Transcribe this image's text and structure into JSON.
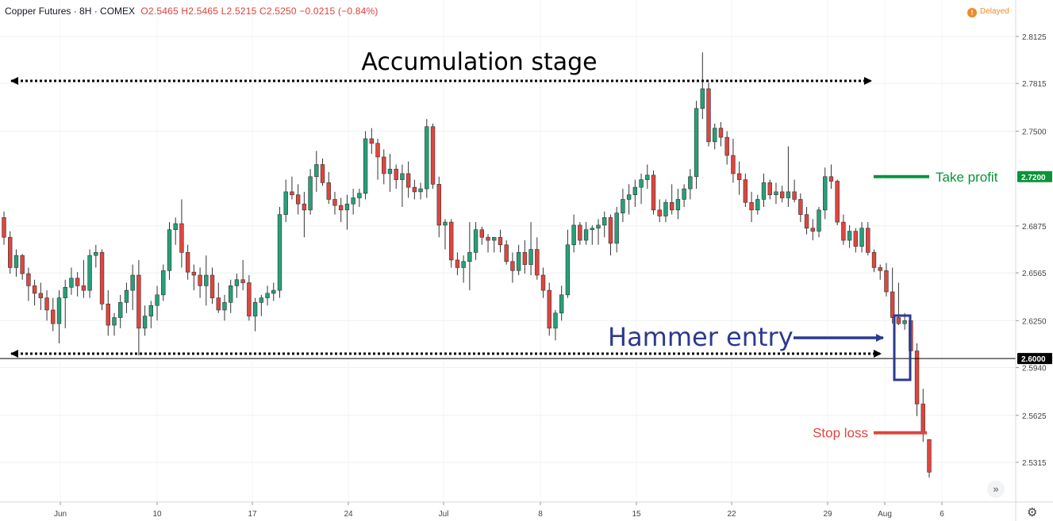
{
  "header": {
    "symbol": "Copper Futures · 8H · COMEX",
    "ohlc": "O2.5465  H2.5465  L2.5215  C2.5250  −0.0215 (−0.84%)",
    "delayed": "Delayed",
    "delayed_icon": "exclamation-icon"
  },
  "chart_data": {
    "type": "candlestick",
    "title": "Copper Futures · 8H · COMEX",
    "y_axis": {
      "range": [
        2.515,
        2.828
      ],
      "ticks": [
        "2.8125",
        "2.7815",
        "2.7500",
        "2.6875",
        "2.6565",
        "2.6250",
        "2.5940",
        "2.5625",
        "2.5315"
      ],
      "position": "right"
    },
    "x_axis": {
      "ticks": [
        "Jun",
        "10",
        "17",
        "24",
        "Jul",
        "8",
        "15",
        "22",
        "29",
        "Aug",
        "6"
      ]
    },
    "price_labels": [
      {
        "value": 2.72,
        "text": "2.7200",
        "color": "#0a9438"
      },
      {
        "value": 2.6,
        "text": "2.6000",
        "color": "#000000"
      }
    ],
    "horizontal_line": {
      "value": 2.6,
      "color": "#000000"
    },
    "up_color": "#26a07a",
    "down_color": "#e0453f",
    "candles": [
      [
        2.693,
        2.697,
        2.675,
        2.68
      ],
      [
        2.68,
        2.684,
        2.656,
        2.66
      ],
      [
        2.66,
        2.672,
        2.654,
        2.668
      ],
      [
        2.668,
        2.669,
        2.652,
        2.656
      ],
      [
        2.656,
        2.66,
        2.638,
        2.648
      ],
      [
        2.648,
        2.652,
        2.635,
        2.643
      ],
      [
        2.643,
        2.65,
        2.632,
        2.64
      ],
      [
        2.64,
        2.645,
        2.625,
        2.632
      ],
      [
        2.632,
        2.64,
        2.618,
        2.623
      ],
      [
        2.623,
        2.645,
        2.61,
        2.64
      ],
      [
        2.64,
        2.652,
        2.62,
        2.647
      ],
      [
        2.647,
        2.66,
        2.642,
        2.653
      ],
      [
        2.653,
        2.657,
        2.641,
        2.648
      ],
      [
        2.648,
        2.665,
        2.64,
        2.645
      ],
      [
        2.645,
        2.672,
        2.64,
        2.668
      ],
      [
        2.668,
        2.675,
        2.66,
        2.67
      ],
      [
        2.67,
        2.672,
        2.632,
        2.636
      ],
      [
        2.636,
        2.645,
        2.615,
        2.622
      ],
      [
        2.622,
        2.63,
        2.615,
        2.627
      ],
      [
        2.627,
        2.642,
        2.62,
        2.637
      ],
      [
        2.637,
        2.65,
        2.63,
        2.645
      ],
      [
        2.645,
        2.662,
        2.632,
        2.655
      ],
      [
        2.655,
        2.665,
        2.602,
        2.62
      ],
      [
        2.62,
        2.635,
        2.615,
        2.628
      ],
      [
        2.628,
        2.638,
        2.62,
        2.635
      ],
      [
        2.635,
        2.648,
        2.625,
        2.642
      ],
      [
        2.642,
        2.662,
        2.638,
        2.658
      ],
      [
        2.658,
        2.69,
        2.652,
        2.685
      ],
      [
        2.685,
        2.693,
        2.675,
        2.689
      ],
      [
        2.689,
        2.705,
        2.66,
        2.67
      ],
      [
        2.67,
        2.675,
        2.652,
        2.657
      ],
      [
        2.657,
        2.662,
        2.645,
        2.655
      ],
      [
        2.655,
        2.66,
        2.64,
        2.648
      ],
      [
        2.648,
        2.668,
        2.635,
        2.655
      ],
      [
        2.655,
        2.66,
        2.636,
        2.64
      ],
      [
        2.64,
        2.65,
        2.63,
        2.632
      ],
      [
        2.632,
        2.642,
        2.625,
        2.637
      ],
      [
        2.637,
        2.652,
        2.63,
        2.648
      ],
      [
        2.648,
        2.656,
        2.64,
        2.652
      ],
      [
        2.652,
        2.665,
        2.645,
        2.65
      ],
      [
        2.65,
        2.655,
        2.625,
        2.628
      ],
      [
        2.628,
        2.64,
        2.618,
        2.637
      ],
      [
        2.637,
        2.642,
        2.628,
        2.64
      ],
      [
        2.64,
        2.648,
        2.635,
        2.643
      ],
      [
        2.643,
        2.65,
        2.638,
        2.645
      ],
      [
        2.645,
        2.7,
        2.64,
        2.695
      ],
      [
        2.695,
        2.718,
        2.69,
        2.71
      ],
      [
        2.71,
        2.72,
        2.705,
        2.708
      ],
      [
        2.708,
        2.715,
        2.695,
        2.702
      ],
      [
        2.702,
        2.71,
        2.68,
        2.698
      ],
      [
        2.698,
        2.725,
        2.695,
        2.72
      ],
      [
        2.72,
        2.737,
        2.71,
        2.728
      ],
      [
        2.728,
        2.732,
        2.714,
        2.716
      ],
      [
        2.716,
        2.723,
        2.702,
        2.705
      ],
      [
        2.705,
        2.71,
        2.695,
        2.701
      ],
      [
        2.701,
        2.706,
        2.69,
        2.698
      ],
      [
        2.698,
        2.708,
        2.685,
        2.702
      ],
      [
        2.702,
        2.712,
        2.695,
        2.706
      ],
      [
        2.706,
        2.712,
        2.7,
        2.709
      ],
      [
        2.709,
        2.75,
        2.705,
        2.745
      ],
      [
        2.745,
        2.752,
        2.735,
        2.742
      ],
      [
        2.742,
        2.745,
        2.718,
        2.733
      ],
      [
        2.733,
        2.738,
        2.715,
        2.722
      ],
      [
        2.722,
        2.735,
        2.71,
        2.725
      ],
      [
        2.725,
        2.728,
        2.712,
        2.718
      ],
      [
        2.718,
        2.728,
        2.7,
        2.722
      ],
      [
        2.722,
        2.73,
        2.706,
        2.713
      ],
      [
        2.713,
        2.718,
        2.705,
        2.71
      ],
      [
        2.71,
        2.716,
        2.705,
        2.712
      ],
      [
        2.712,
        2.758,
        2.706,
        2.753
      ],
      [
        2.753,
        2.755,
        2.712,
        2.715
      ],
      [
        2.715,
        2.72,
        2.68,
        2.688
      ],
      [
        2.688,
        2.692,
        2.672,
        2.69
      ],
      [
        2.69,
        2.692,
        2.66,
        2.665
      ],
      [
        2.665,
        2.67,
        2.655,
        2.66
      ],
      [
        2.66,
        2.668,
        2.65,
        2.664
      ],
      [
        2.664,
        2.69,
        2.645,
        2.67
      ],
      [
        2.67,
        2.69,
        2.665,
        2.685
      ],
      [
        2.685,
        2.687,
        2.675,
        2.68
      ],
      [
        2.68,
        2.682,
        2.67,
        2.678
      ],
      [
        2.678,
        2.68,
        2.67,
        2.68
      ],
      [
        2.68,
        2.685,
        2.67,
        2.675
      ],
      [
        2.675,
        2.678,
        2.662,
        2.664
      ],
      [
        2.664,
        2.67,
        2.65,
        2.658
      ],
      [
        2.658,
        2.675,
        2.655,
        2.67
      ],
      [
        2.67,
        2.678,
        2.656,
        2.662
      ],
      [
        2.662,
        2.69,
        2.655,
        2.672
      ],
      [
        2.672,
        2.68,
        2.652,
        2.655
      ],
      [
        2.655,
        2.66,
        2.64,
        2.645
      ],
      [
        2.645,
        2.65,
        2.615,
        2.62
      ],
      [
        2.62,
        2.632,
        2.612,
        2.63
      ],
      [
        2.63,
        2.648,
        2.625,
        2.642
      ],
      [
        2.642,
        2.685,
        2.64,
        2.675
      ],
      [
        2.675,
        2.695,
        2.67,
        2.688
      ],
      [
        2.688,
        2.69,
        2.675,
        2.678
      ],
      [
        2.678,
        2.69,
        2.675,
        2.685
      ],
      [
        2.685,
        2.688,
        2.675,
        2.686
      ],
      [
        2.686,
        2.692,
        2.675,
        2.688
      ],
      [
        2.688,
        2.697,
        2.68,
        2.693
      ],
      [
        2.693,
        2.695,
        2.668,
        2.676
      ],
      [
        2.676,
        2.7,
        2.67,
        2.696
      ],
      [
        2.696,
        2.712,
        2.69,
        2.705
      ],
      [
        2.705,
        2.715,
        2.695,
        2.708
      ],
      [
        2.708,
        2.718,
        2.7,
        2.713
      ],
      [
        2.713,
        2.722,
        2.702,
        2.718
      ],
      [
        2.718,
        2.728,
        2.712,
        2.721
      ],
      [
        2.721,
        2.724,
        2.695,
        2.698
      ],
      [
        2.698,
        2.705,
        2.69,
        2.694
      ],
      [
        2.694,
        2.705,
        2.69,
        2.703
      ],
      [
        2.703,
        2.715,
        2.695,
        2.698
      ],
      [
        2.698,
        2.712,
        2.692,
        2.705
      ],
      [
        2.705,
        2.715,
        2.7,
        2.712
      ],
      [
        2.712,
        2.725,
        2.705,
        2.72
      ],
      [
        2.72,
        2.77,
        2.712,
        2.765
      ],
      [
        2.765,
        2.802,
        2.758,
        2.778
      ],
      [
        2.778,
        2.782,
        2.74,
        2.743
      ],
      [
        2.743,
        2.755,
        2.738,
        2.752
      ],
      [
        2.752,
        2.756,
        2.74,
        2.746
      ],
      [
        2.746,
        2.75,
        2.728,
        2.734
      ],
      [
        2.734,
        2.745,
        2.716,
        2.722
      ],
      [
        2.722,
        2.73,
        2.708,
        2.718
      ],
      [
        2.718,
        2.722,
        2.7,
        2.703
      ],
      [
        2.703,
        2.71,
        2.69,
        2.698
      ],
      [
        2.698,
        2.708,
        2.695,
        2.705
      ],
      [
        2.705,
        2.722,
        2.7,
        2.716
      ],
      [
        2.716,
        2.718,
        2.705,
        2.708
      ],
      [
        2.708,
        2.716,
        2.702,
        2.71
      ],
      [
        2.71,
        2.714,
        2.703,
        2.706
      ],
      [
        2.706,
        2.74,
        2.7,
        2.71
      ],
      [
        2.71,
        2.718,
        2.703,
        2.705
      ],
      [
        2.705,
        2.709,
        2.69,
        2.695
      ],
      [
        2.695,
        2.7,
        2.682,
        2.686
      ],
      [
        2.686,
        2.692,
        2.678,
        2.684
      ],
      [
        2.684,
        2.7,
        2.68,
        2.698
      ],
      [
        2.698,
        2.726,
        2.692,
        2.72
      ],
      [
        2.72,
        2.728,
        2.712,
        2.717
      ],
      [
        2.717,
        2.718,
        2.688,
        2.69
      ],
      [
        2.69,
        2.695,
        2.675,
        2.678
      ],
      [
        2.678,
        2.688,
        2.673,
        2.684
      ],
      [
        2.684,
        2.686,
        2.67,
        2.674
      ],
      [
        2.674,
        2.69,
        2.67,
        2.686
      ],
      [
        2.686,
        2.69,
        2.668,
        2.67
      ],
      [
        2.67,
        2.672,
        2.657,
        2.66
      ],
      [
        2.66,
        2.662,
        2.652,
        2.658
      ],
      [
        2.658,
        2.663,
        2.641,
        2.644
      ],
      [
        2.644,
        2.66,
        2.623,
        2.627
      ],
      [
        2.627,
        2.65,
        2.622,
        2.623
      ],
      [
        2.623,
        2.63,
        2.619,
        2.625
      ],
      [
        2.625,
        2.627,
        2.6,
        2.605
      ],
      [
        2.605,
        2.61,
        2.562,
        2.57
      ],
      [
        2.57,
        2.58,
        2.545,
        2.551
      ],
      [
        2.5465,
        2.5465,
        2.5215,
        2.525
      ]
    ],
    "annotations": {
      "accumulation": {
        "text": "Accumulation  stage",
        "color": "#000000"
      },
      "hammer": {
        "text": "Hammer entry",
        "color": "#2c3a8f"
      },
      "take_profit": {
        "text": "Take profit",
        "color": "#0a9438",
        "value": 2.72
      },
      "stop_loss": {
        "text": "Stop  loss",
        "color": "#e0453f",
        "value": 2.551
      }
    },
    "toolbar": {
      "scroll_glyph": "»",
      "settings_glyph": "⚙"
    }
  }
}
